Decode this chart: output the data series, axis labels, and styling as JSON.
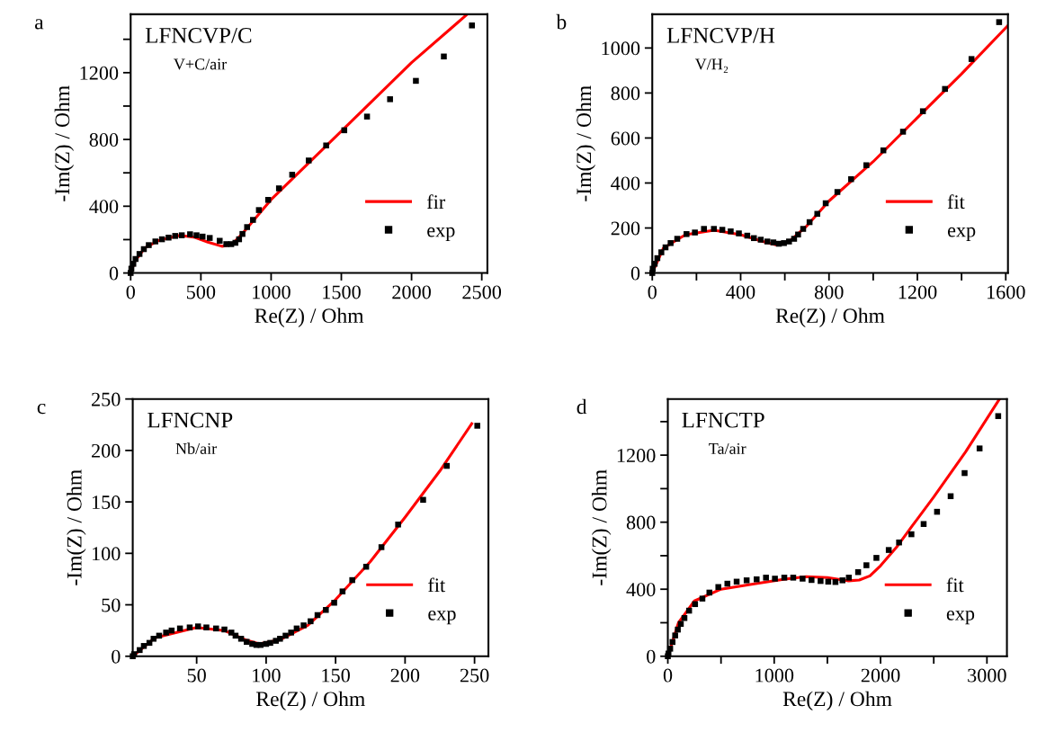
{
  "chart_data": [
    {
      "type": "scatter",
      "title": "a",
      "xlabel": "Re(Z) / Ohm",
      "ylabel": "-Im(Z) / Ohm",
      "annotations": [
        "LFNCVP/C",
        "V+C/air"
      ],
      "xlim": [
        0,
        2540
      ],
      "ylim": [
        0,
        1550
      ],
      "xticks": [
        0,
        500,
        1000,
        1500,
        2000,
        2500
      ],
      "yticks": [
        0,
        {
          "value": 200,
          "label": null
        },
        400,
        {
          "value": 600,
          "label": null
        },
        800,
        {
          "value": 1000,
          "label": null
        },
        1200,
        {
          "value": 1400,
          "label": null
        }
      ],
      "grid": false,
      "legend": "bottom right",
      "series": [
        {
          "name": "fir",
          "type": "line",
          "color": "#ff0000",
          "line_style": "solid",
          "marker": "none",
          "x": [
            0,
            30,
            100,
            200,
            350,
            450,
            550,
            650,
            720,
            800,
            1000,
            1500,
            2000,
            2394
          ],
          "values": [
            0,
            70,
            150,
            195,
            225,
            215,
            185,
            160,
            170,
            240,
            440,
            850,
            1260,
            1548
          ]
        },
        {
          "name": "exp",
          "color": "#000000",
          "marker": "square",
          "x": [
            0,
            5,
            19,
            35,
            63,
            94,
            129,
            176,
            223,
            270,
            317,
            364,
            423,
            469,
            512,
            563,
            634,
            681,
            716,
            746,
            772,
            796,
            829,
            871,
            913,
            979,
            1056,
            1150,
            1268,
            1392,
            1521,
            1683,
            1847,
            2031,
            2230,
            2430
          ],
          "values": [
            0,
            26,
            55,
            84,
            114,
            143,
            167,
            189,
            202,
            212,
            222,
            226,
            232,
            226,
            218,
            210,
            193,
            173,
            173,
            181,
            202,
            234,
            275,
            318,
            377,
            438,
            507,
            589,
            674,
            764,
            855,
            937,
            1041,
            1151,
            1297,
            1483
          ]
        }
      ]
    },
    {
      "type": "scatter",
      "title": "b",
      "xlabel": "Re(Z) / Ohm",
      "ylabel": "-Im(Z) / Ohm",
      "annotations": [
        "LFNCVP/H",
        "V/H₂"
      ],
      "xlim": [
        0,
        1610
      ],
      "ylim": [
        0,
        1150
      ],
      "xticks": [
        0,
        {
          "value": 200,
          "label": null
        },
        400,
        {
          "value": 600,
          "label": null
        },
        800,
        {
          "value": 1000,
          "label": null
        },
        1200,
        {
          "value": 1400,
          "label": null
        },
        1600
      ],
      "yticks": [
        0,
        200,
        400,
        600,
        800,
        1000
      ],
      "grid": false,
      "legend": "bottom right",
      "series": [
        {
          "name": "fit",
          "type": "line",
          "color": "#ff0000",
          "line_style": "solid",
          "marker": "none",
          "x": [
            0,
            50,
            150,
            280,
            400,
            500,
            560,
            620,
            700,
            800,
            1000,
            1200,
            1400,
            1610
          ],
          "values": [
            0,
            110,
            170,
            190,
            170,
            140,
            125,
            140,
            210,
            320,
            495,
            690,
            885,
            1100
          ]
        },
        {
          "name": "exp",
          "color": "#000000",
          "marker": "square",
          "x": [
            0,
            2,
            11,
            23,
            41,
            60,
            83,
            113,
            155,
            193,
            234,
            279,
            317,
            355,
            392,
            430,
            460,
            491,
            521,
            548,
            573,
            596,
            619,
            642,
            660,
            683,
            712,
            747,
            785,
            838,
            900,
            969,
            1046,
            1135,
            1225,
            1325,
            1445,
            1570
          ],
          "values": [
            0,
            19,
            41,
            66,
            92,
            114,
            133,
            152,
            173,
            180,
            196,
            196,
            192,
            185,
            176,
            166,
            155,
            148,
            140,
            136,
            130,
            133,
            140,
            152,
            171,
            196,
            226,
            263,
            310,
            360,
            417,
            479,
            545,
            628,
            719,
            818,
            951,
            1115
          ]
        }
      ]
    },
    {
      "type": "scatter",
      "title": "c",
      "xlabel": "Re(Z) / Ohm",
      "ylabel": "-Im(Z) / Ohm",
      "annotations": [
        "LFNCNP",
        "Nb/air"
      ],
      "xlim": [
        4,
        260
      ],
      "ylim": [
        0,
        250
      ],
      "xticks": [
        50,
        100,
        150,
        200,
        250
      ],
      "yticks": [
        0,
        50,
        100,
        150,
        200,
        250
      ],
      "grid": false,
      "legend": "bottom right",
      "series": [
        {
          "name": "fit",
          "type": "line",
          "color": "#ff0000",
          "line_style": "solid",
          "marker": "none",
          "x": [
            4,
            20,
            50,
            70,
            85,
            95,
            110,
            130,
            150,
            175,
            200,
            225,
            248
          ],
          "values": [
            0,
            18,
            28,
            25,
            16,
            12,
            16,
            30,
            55,
            92,
            135,
            180,
            226
          ]
        },
        {
          "name": "exp",
          "color": "#000000",
          "marker": "square",
          "x": [
            4,
            5,
            9,
            12,
            16,
            19,
            23,
            28,
            32,
            38,
            45,
            51,
            57,
            64,
            70,
            75,
            78,
            82,
            86,
            90,
            93,
            96,
            100,
            103,
            107,
            110,
            114,
            118,
            122,
            127,
            132,
            137,
            143,
            149,
            155,
            162,
            172,
            183,
            195,
            213,
            230,
            252
          ],
          "values": [
            0,
            2,
            6,
            10,
            13,
            17,
            20,
            23,
            25,
            27,
            28,
            29,
            28,
            27,
            26,
            23,
            20,
            17,
            14,
            12,
            11,
            11,
            12,
            13,
            15,
            17,
            20,
            23,
            27,
            30,
            34,
            40,
            45,
            52,
            63,
            74,
            87,
            106,
            128,
            152,
            185,
            224
          ]
        }
      ]
    },
    {
      "type": "scatter",
      "title": "d",
      "xlabel": "Re(Z) / Ohm",
      "ylabel": "-Im(Z) / Ohm",
      "annotations": [
        "LFNCTP",
        "Ta/air"
      ],
      "xlim": [
        0,
        3188
      ],
      "ylim": [
        0,
        1535
      ],
      "xticks": [
        0,
        {
          "value": 500,
          "label": null
        },
        1000,
        {
          "value": 1500,
          "label": null
        },
        2000,
        {
          "value": 2500,
          "label": null
        },
        3000
      ],
      "yticks": [
        0,
        {
          "value": 200,
          "label": null
        },
        400,
        {
          "value": 600,
          "label": null
        },
        800,
        {
          "value": 1000,
          "label": null
        },
        1200,
        {
          "value": 1400,
          "label": null
        }
      ],
      "grid": false,
      "legend": "bottom right",
      "series": [
        {
          "name": "fit",
          "type": "line",
          "color": "#ff0000",
          "line_style": "solid",
          "marker": "none",
          "x": [
            0,
            100,
            250,
            500,
            800,
            1100,
            1300,
            1500,
            1700,
            1800,
            1900,
            2000,
            2150,
            2300,
            2500,
            2800,
            3118
          ],
          "values": [
            0,
            200,
            330,
            400,
            430,
            460,
            475,
            470,
            450,
            455,
            480,
            540,
            650,
            780,
            950,
            1220,
            1535
          ]
        },
        {
          "name": "exp",
          "color": "#000000",
          "marker": "square",
          "x": [
            0,
            6,
            22,
            44,
            69,
            94,
            122,
            156,
            200,
            256,
            325,
            391,
            475,
            560,
            647,
            741,
            835,
            923,
            1007,
            1095,
            1179,
            1267,
            1351,
            1436,
            1508,
            1576,
            1642,
            1702,
            1789,
            1867,
            1961,
            2077,
            2174,
            2290,
            2405,
            2531,
            2659,
            2790,
            2931,
            3106
          ],
          "values": [
            0,
            16,
            45,
            85,
            124,
            159,
            193,
            228,
            272,
            311,
            344,
            380,
            413,
            433,
            445,
            453,
            459,
            469,
            463,
            469,
            469,
            463,
            455,
            449,
            445,
            443,
            453,
            469,
            502,
            543,
            587,
            634,
            679,
            728,
            789,
            862,
            955,
            1093,
            1240,
            1433
          ]
        }
      ]
    }
  ]
}
